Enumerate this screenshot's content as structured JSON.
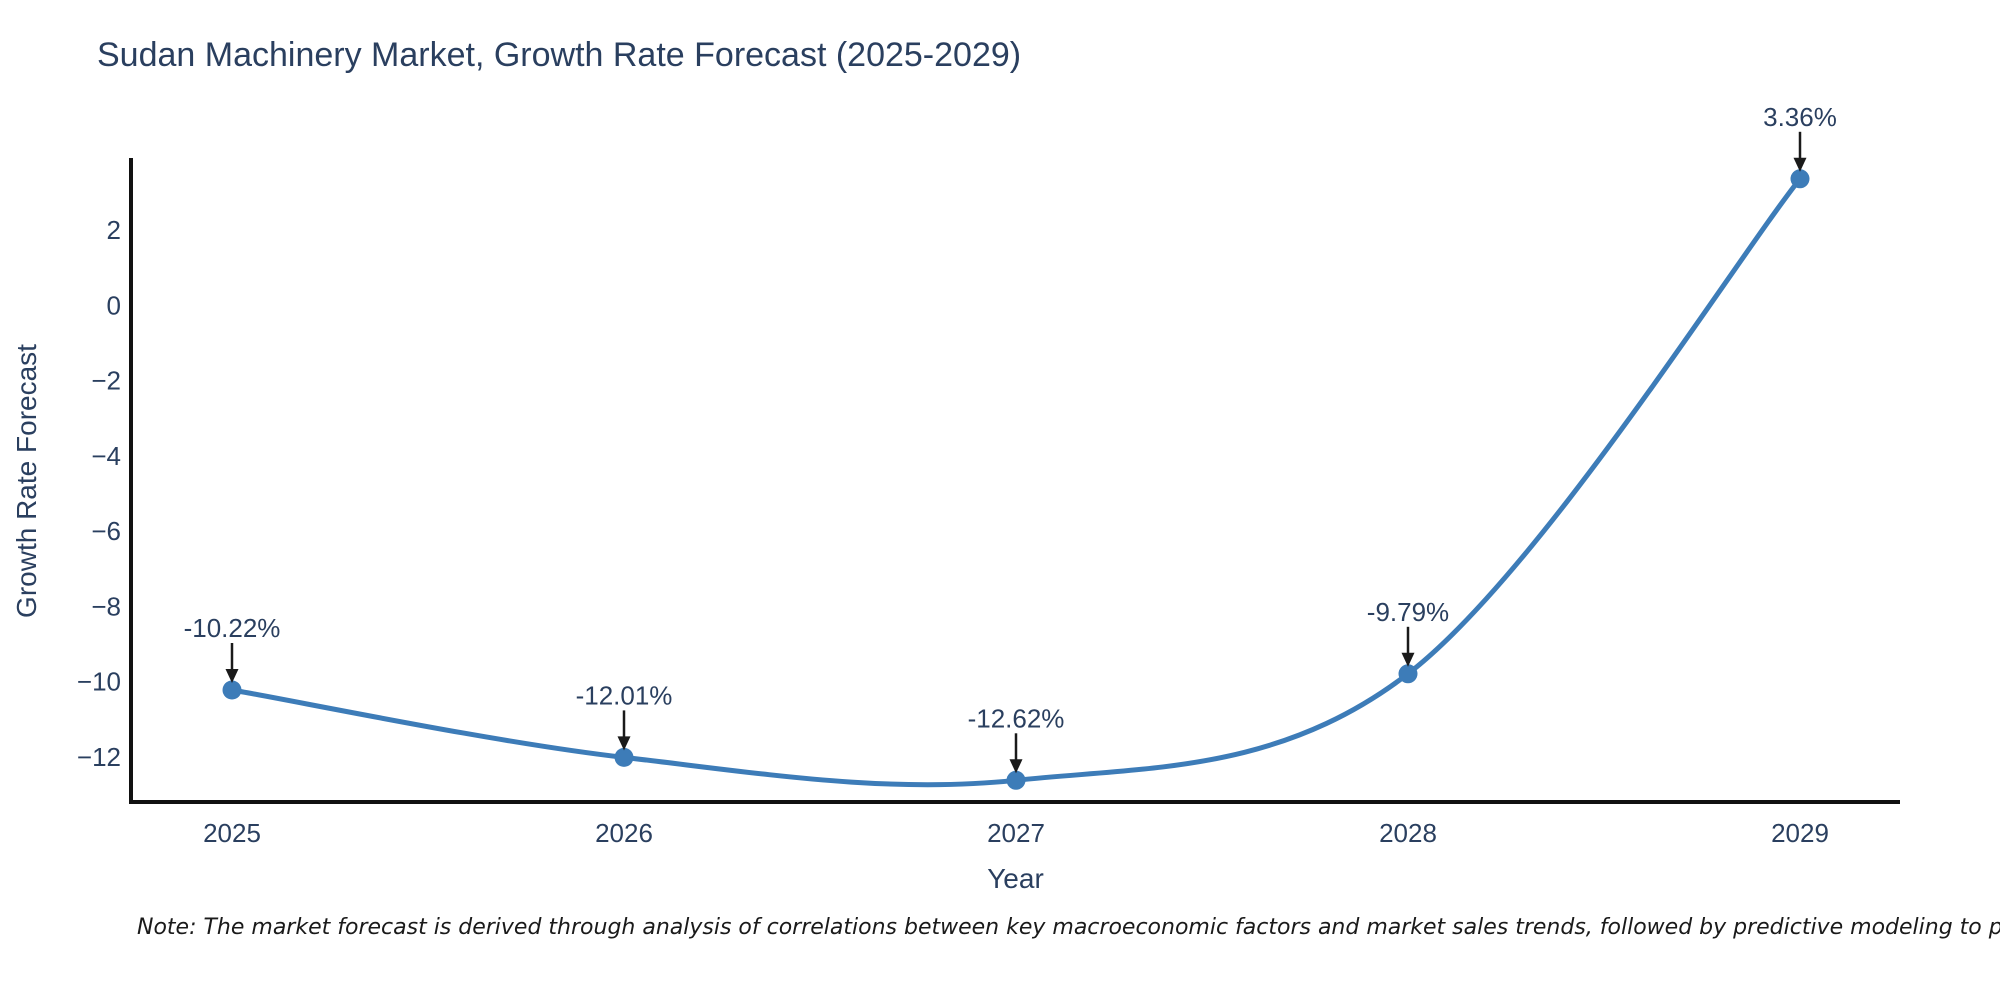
{
  "title": "Sudan Machinery Market, Growth Rate Forecast (2025-2029)",
  "note": "Note: The market forecast is derived through analysis of correlations between key macroeconomic factors and market sales trends, followed by predictive modeling to project future sales.",
  "chart_data": {
    "type": "line",
    "title": "Sudan Machinery Market, Growth Rate Forecast (2025-2029)",
    "xlabel": "Year",
    "ylabel": "Growth Rate Forecast",
    "categories": [
      "2025",
      "2026",
      "2027",
      "2028",
      "2029"
    ],
    "series": [
      {
        "name": "Growth Rate Forecast",
        "values": [
          -10.22,
          -12.01,
          -12.62,
          -9.79,
          3.36
        ],
        "point_labels": [
          "-10.22%",
          "-12.01%",
          "-12.62%",
          "-9.79%",
          "3.36%"
        ]
      }
    ],
    "line_shape": "spline",
    "markers": true,
    "annotations_arrows": true,
    "grid": false,
    "legend_position": "none",
    "ylim": [
      -13.2,
      3.9
    ],
    "yticks": [
      {
        "v": 2,
        "label": "2"
      },
      {
        "v": 0,
        "label": "0"
      },
      {
        "v": -2,
        "label": "−2"
      },
      {
        "v": -4,
        "label": "−4"
      },
      {
        "v": -6,
        "label": "−6"
      },
      {
        "v": -8,
        "label": "−8"
      },
      {
        "v": -10,
        "label": "−10"
      },
      {
        "v": -12,
        "label": "−12"
      }
    ],
    "colors": {
      "line": "#3d7cb8",
      "marker": "#3d7cb8",
      "text": "#2a3f5f",
      "arrow": "#1a1a1a",
      "axis": "#111111",
      "background": "#ffffff"
    }
  }
}
